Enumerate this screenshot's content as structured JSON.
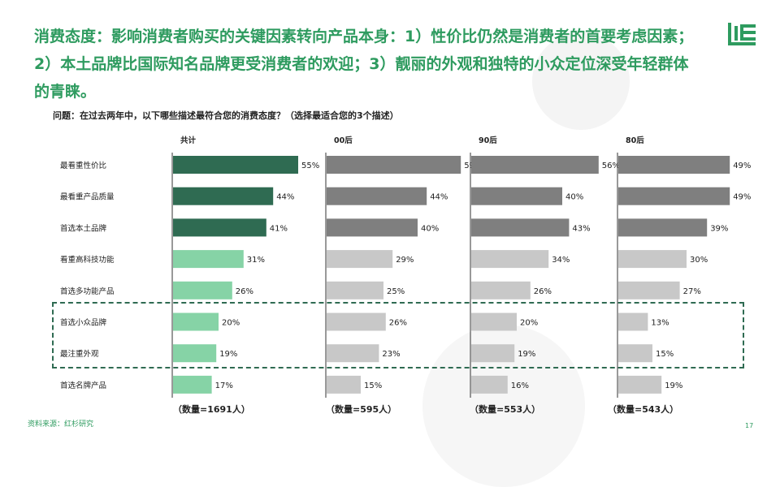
{
  "headline": {
    "line1": "消费态度：影响消费者购买的关键因素转向产品本身：1）性价比仍然是消费者的首要考虑因素；",
    "line2": "2）本土品牌比国际知名品牌更受消费者的欢迎；3）靓丽的外观和独特的小众定位深受年轻群体",
    "line3": "的青睐。"
  },
  "question": "问题：在过去两年中，以下哪些描述最符合您的消费态度？（选择最适合您的3个描述）",
  "source": "资料来源：红杉研究",
  "page_number": "17",
  "colors": {
    "total_dark": "#2f6b52",
    "total_light": "#86d3a6",
    "group_dark": "#7f7f7f",
    "group_light": "#c8c8c8",
    "accent_green": "#2e9b5f"
  },
  "chart_data": {
    "type": "bar",
    "orientation": "horizontal",
    "categories": [
      "最看重性价比",
      "最看重产品质量",
      "首选本土品牌",
      "看重高科技功能",
      "首选多功能产品",
      "首选小众品牌",
      "最注重外观",
      "首选名牌产品"
    ],
    "value_suffix": "%",
    "series": [
      {
        "name": "共计",
        "values": [
          55,
          44,
          41,
          31,
          26,
          20,
          19,
          17
        ],
        "sample_label": "（数量=1691人）"
      },
      {
        "name": "00后",
        "values": [
          59,
          44,
          40,
          29,
          25,
          26,
          23,
          15
        ],
        "sample_label": "（数量=595人）"
      },
      {
        "name": "90后",
        "values": [
          56,
          40,
          43,
          34,
          26,
          20,
          19,
          16
        ],
        "sample_label": "（数量=553人）"
      },
      {
        "name": "80后",
        "values": [
          49,
          49,
          39,
          30,
          27,
          13,
          15,
          19
        ],
        "sample_label": "（数量=543人）"
      }
    ],
    "top_n_emphasized": 3,
    "highlighted_categories": [
      "首选小众品牌",
      "最注重外观"
    ]
  }
}
